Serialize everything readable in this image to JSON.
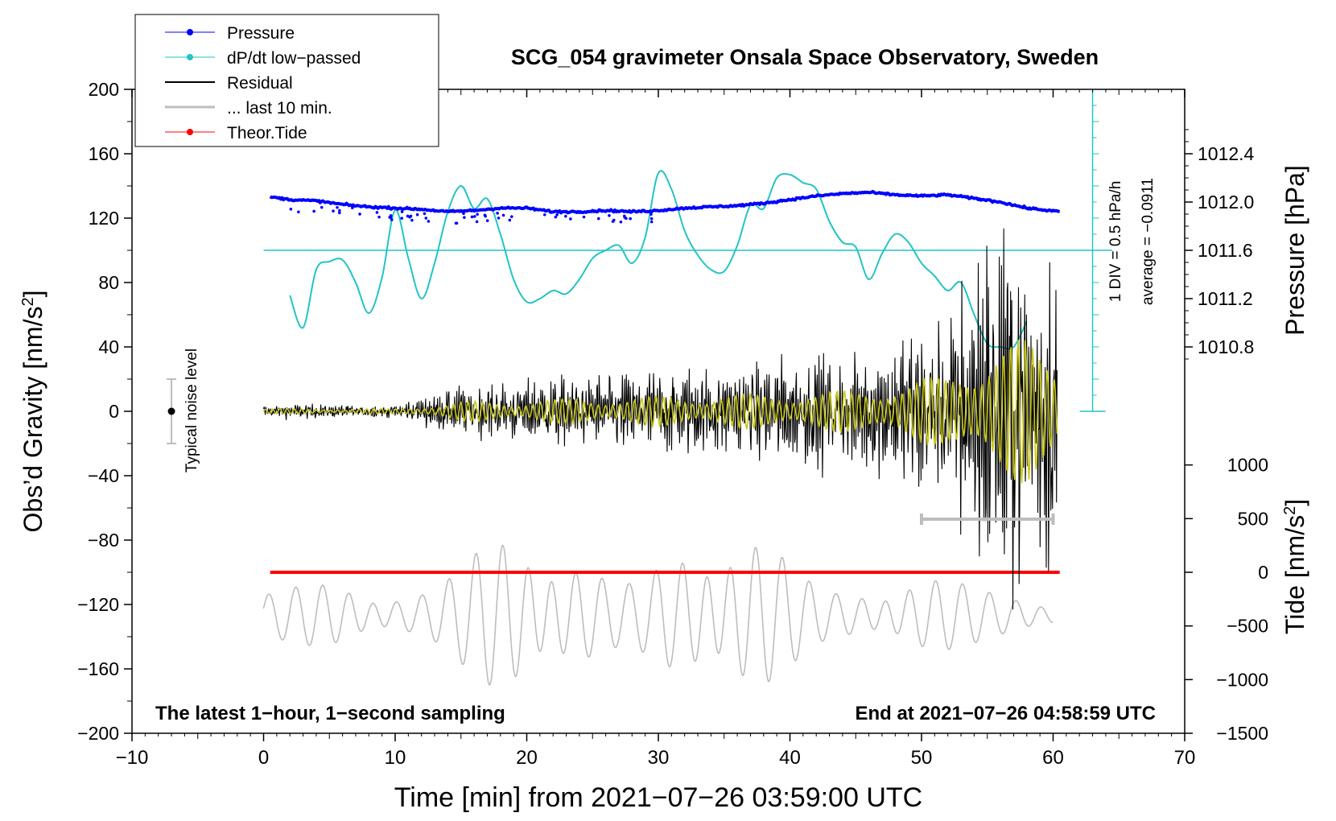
{
  "chart_data": {
    "type": "line",
    "title": "SCG_054 gravimeter Onsala Space Observatory, Sweden",
    "xlabel": "Time [min] from 2021−07−26 03:59:00 UTC",
    "ylabel": "Obs’d Gravity [nm/s²]",
    "ylabel_main": "Obs’d Gravity [nm/s",
    "ylabel_sup": "2",
    "ylabel_close": "]",
    "ylabel_right_pressure": "Pressure [hPa]",
    "ylabel_right_tide_main": "Tide [nm/s",
    "ylabel_right_tide_sup": "2",
    "ylabel_right_tide_close": "]",
    "xlim": [
      -10,
      70
    ],
    "ylim": [
      -200,
      200
    ],
    "x_ticks": [
      -10,
      0,
      10,
      20,
      30,
      40,
      50,
      60,
      70
    ],
    "x_tick_labels": [
      "−10",
      "0",
      "10",
      "20",
      "30",
      "40",
      "50",
      "60",
      "70"
    ],
    "y_ticks": [
      -200,
      -160,
      -120,
      -80,
      -40,
      0,
      40,
      80,
      120,
      160,
      200
    ],
    "y_tick_labels": [
      "−200",
      "−160",
      "−120",
      "−80",
      "−40",
      "0",
      "40",
      "80",
      "120",
      "160",
      "200"
    ],
    "pressure_ticks": [
      1010.8,
      1011.2,
      1011.6,
      1012.0,
      1012.4
    ],
    "pressure_tick_labels": [
      "1010.8",
      "1011.2",
      "1011.6",
      "1012.0",
      "1012.4"
    ],
    "pressure_mapping": {
      "p1": 1010.8,
      "g1": 40,
      "p2": 1012.4,
      "g2": 160
    },
    "tide_ticks": [
      -1500,
      -1000,
      -500,
      0,
      500,
      1000
    ],
    "tide_tick_labels": [
      "−1500",
      "−1000",
      "−500",
      "0",
      "500",
      "1000"
    ],
    "tide_mapping": {
      "t1": -1500,
      "g1": -200,
      "t2": 0,
      "g2": -100
    },
    "legend": {
      "position": "top-left",
      "entries": [
        {
          "label": "Pressure",
          "color": "#0000ff",
          "marker": true
        },
        {
          "label": "dP/dt low−passed",
          "color": "#22c4c4",
          "marker": true
        },
        {
          "label": "Residual",
          "color": "#000000",
          "marker": false
        },
        {
          "label": "... last 10 min.",
          "color": "#bdbdbd",
          "marker": false
        },
        {
          "label": "Theor.Tide",
          "color": "#ff0000",
          "marker": true
        }
      ]
    },
    "annotations": {
      "bottom_left": "The latest 1−hour, 1−second sampling",
      "bottom_right": "End at 2021−07−26 04:58:59 UTC",
      "noise_label": "Typical noise level",
      "dpdt_scale": "1 DIV = 0.5 hPa/h",
      "dpdt_average": "average = −0.0911"
    },
    "noise_bar": {
      "x": -7,
      "center": 0,
      "half_range": 20
    },
    "dpdt_scale_axis": {
      "x": 63,
      "base": 0,
      "top": 200,
      "divisions": 20,
      "ref_level": 100
    },
    "last10_range": [
      50,
      60
    ],
    "last10_level": -67,
    "series": [
      {
        "name": "Pressure",
        "color": "#0000ff",
        "unit": "hPa",
        "x": [
          0,
          2,
          4,
          6,
          8,
          10,
          12,
          14,
          16,
          18,
          20,
          22,
          24,
          26,
          28,
          30,
          32,
          34,
          36,
          38,
          40,
          42,
          44,
          46,
          48,
          50,
          52,
          54,
          56,
          58,
          60.5
        ],
        "values": [
          1012.05,
          1012.02,
          1012.01,
          1011.98,
          1011.96,
          1011.95,
          1011.94,
          1011.92,
          1011.93,
          1011.95,
          1011.95,
          1011.92,
          1011.92,
          1011.93,
          1011.92,
          1011.93,
          1011.95,
          1011.96,
          1011.97,
          1011.99,
          1012.02,
          1012.05,
          1012.07,
          1012.08,
          1012.06,
          1012.05,
          1012.06,
          1012.03,
          1012.0,
          1011.95,
          1011.92
        ]
      },
      {
        "name": "dP/dt low−passed",
        "color": "#22c4c4",
        "unit": "nm/s² scale",
        "x": [
          2,
          3,
          4,
          5,
          6,
          7,
          8,
          9,
          10,
          11,
          12,
          13,
          14,
          15,
          16,
          17,
          18,
          19,
          20,
          21,
          22,
          23,
          24,
          25,
          26,
          27,
          28,
          29,
          30,
          31,
          32,
          33,
          34,
          35,
          36,
          37,
          38,
          39,
          40,
          41,
          42,
          43,
          44,
          45,
          46,
          47,
          48,
          49,
          50,
          51,
          52,
          53,
          54,
          55,
          56,
          57,
          58
        ],
        "values": [
          72,
          52,
          88,
          93,
          94,
          80,
          61,
          83,
          125,
          95,
          70,
          92,
          124,
          140,
          126,
          132,
          110,
          82,
          68,
          70,
          75,
          73,
          82,
          95,
          100,
          103,
          92,
          108,
          148,
          138,
          112,
          97,
          88,
          87,
          103,
          128,
          126,
          145,
          147,
          142,
          138,
          118,
          105,
          102,
          82,
          98,
          110,
          105,
          92,
          84,
          75,
          80,
          60,
          42,
          40,
          40,
          56
        ]
      },
      {
        "name": "Residual",
        "color": "#000000",
        "envelope": "growing, ±3 to ±90 nm/s²"
      },
      {
        "name": "... last 10 min.",
        "color": "#bdbdbd",
        "unit": "nm/s² (tide axis scale)"
      },
      {
        "name": "Theor.Tide",
        "color": "#ff0000",
        "x": [
          0.5,
          60.5
        ],
        "values": [
          0,
          0
        ],
        "unit": "nm/s²"
      }
    ]
  }
}
